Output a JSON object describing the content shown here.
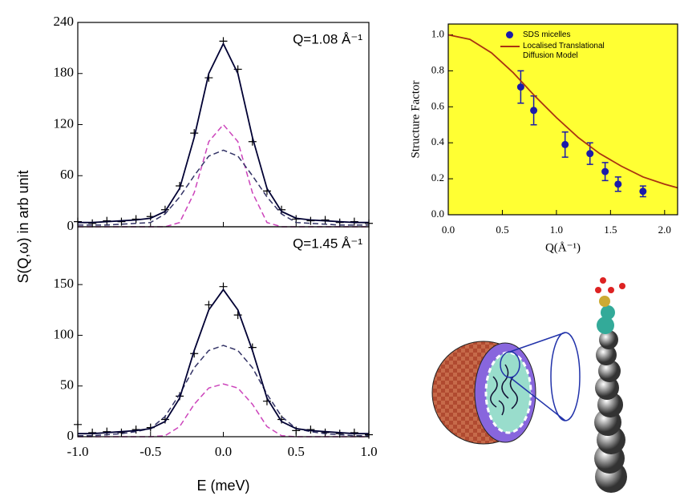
{
  "chart_data": [
    {
      "type": "line",
      "ylabel": "S(Q,ω) in arb unit",
      "annotation": "Q=1.08 Å⁻¹",
      "xlim": [
        -1.0,
        1.0
      ],
      "xticks": [
        -1,
        -0.5,
        0,
        0.5,
        1
      ],
      "ylim": [
        0,
        240
      ],
      "yticks": [
        0,
        60,
        120,
        180,
        240
      ],
      "x": [
        -1.0,
        -0.9,
        -0.8,
        -0.7,
        -0.6,
        -0.5,
        -0.4,
        -0.3,
        -0.2,
        -0.1,
        0.0,
        0.1,
        0.2,
        0.3,
        0.4,
        0.5,
        0.6,
        0.7,
        0.8,
        0.9,
        1.0
      ],
      "series": [
        {
          "type": "scatter",
          "color": "#000000",
          "values": [
            6,
            4,
            7,
            6,
            9,
            12,
            20,
            48,
            110,
            175,
            218,
            185,
            100,
            42,
            20,
            9,
            7,
            8,
            5,
            6,
            4
          ]
        },
        {
          "type": "line",
          "color": "#cc44bb",
          "dashed": true,
          "values": [
            0,
            0,
            0,
            0,
            0,
            0,
            0,
            5,
            40,
            100,
            120,
            100,
            40,
            5,
            0,
            0,
            0,
            0,
            0,
            0,
            0
          ]
        },
        {
          "type": "line",
          "color": "#333366",
          "dashed": true,
          "values": [
            2,
            2,
            2,
            3,
            4,
            5,
            15,
            35,
            60,
            83,
            90,
            83,
            60,
            35,
            15,
            5,
            4,
            3,
            2,
            2,
            2
          ]
        },
        {
          "type": "line",
          "color": "#000033",
          "dashed": false,
          "values": [
            5,
            5,
            6,
            7,
            8,
            10,
            18,
            45,
            105,
            180,
            215,
            180,
            105,
            45,
            18,
            10,
            8,
            7,
            6,
            5,
            5
          ]
        }
      ]
    },
    {
      "type": "line",
      "xlabel": "E (meV)",
      "annotation": "Q=1.45 Å⁻¹",
      "xlim": [
        -1.0,
        1.0
      ],
      "xticks": [
        {
          "value": -1.0,
          "label": "-1.0"
        },
        {
          "value": -0.5,
          "label": "-0.5"
        },
        {
          "value": 0.0,
          "label": "0.0"
        },
        {
          "value": 0.5,
          "label": "0.5"
        },
        {
          "value": 1.0,
          "label": "1.0"
        }
      ],
      "ylim": [
        0,
        207
      ],
      "yticks": [
        0,
        50,
        100,
        150
      ],
      "x": [
        -1.0,
        -0.9,
        -0.8,
        -0.7,
        -0.6,
        -0.5,
        -0.4,
        -0.3,
        -0.2,
        -0.1,
        0.0,
        0.1,
        0.2,
        0.3,
        0.4,
        0.5,
        0.6,
        0.7,
        0.8,
        0.9,
        1.0
      ],
      "series": [
        {
          "type": "scatter",
          "color": "#000000",
          "values": [
            12,
            4,
            5,
            4,
            7,
            9,
            17,
            40,
            82,
            130,
            148,
            120,
            88,
            35,
            17,
            6,
            7,
            4,
            3,
            4,
            2
          ]
        },
        {
          "type": "line",
          "color": "#cc44bb",
          "dashed": true,
          "values": [
            0,
            0,
            0,
            0,
            0,
            0,
            1,
            10,
            32,
            48,
            52,
            48,
            32,
            10,
            1,
            0,
            0,
            0,
            0,
            0,
            0
          ]
        },
        {
          "type": "line",
          "color": "#333366",
          "dashed": true,
          "values": [
            1,
            1,
            2,
            3,
            5,
            8,
            20,
            42,
            68,
            85,
            90,
            85,
            68,
            42,
            20,
            8,
            5,
            3,
            2,
            1,
            1
          ]
        },
        {
          "type": "line",
          "color": "#000033",
          "dashed": false,
          "values": [
            3,
            3,
            4,
            5,
            6,
            8,
            15,
            38,
            85,
            125,
            145,
            125,
            85,
            38,
            15,
            8,
            6,
            5,
            4,
            3,
            3
          ]
        }
      ]
    },
    {
      "type": "scatter",
      "xlabel": "Q(Å⁻¹)",
      "ylabel": "Structure Factor",
      "background": "#ffff33",
      "xlim": [
        0,
        2.12
      ],
      "xticks": [
        {
          "value": 0.0,
          "label": "0.0"
        },
        {
          "value": 0.5,
          "label": "0.5"
        },
        {
          "value": 1.0,
          "label": "1.0"
        },
        {
          "value": 1.5,
          "label": "1.5"
        },
        {
          "value": 2.0,
          "label": "2.0"
        }
      ],
      "ylim": [
        0,
        1.06
      ],
      "yticks": [
        {
          "value": 0.0,
          "label": "0.0"
        },
        {
          "value": 0.2,
          "label": "0.2"
        },
        {
          "value": 0.4,
          "label": "0.4"
        },
        {
          "value": 0.6,
          "label": "0.6"
        },
        {
          "value": 0.8,
          "label": "0.8"
        },
        {
          "value": 1.0,
          "label": "1.0"
        }
      ],
      "series": [
        {
          "type": "scatter",
          "name": "SDS micelles",
          "color": "#1a1aaa",
          "x": [
            0.67,
            0.79,
            1.08,
            1.31,
            1.45,
            1.57,
            1.8
          ],
          "values": [
            0.71,
            0.58,
            0.39,
            0.34,
            0.24,
            0.17,
            0.13
          ],
          "errors": [
            0.09,
            0.08,
            0.07,
            0.06,
            0.05,
            0.04,
            0.03
          ]
        },
        {
          "type": "line",
          "name": "Localised Translational Diffusion Model",
          "color": "#aa3311",
          "dashed": false,
          "x": [
            0,
            0.2,
            0.4,
            0.6,
            0.8,
            1.0,
            1.2,
            1.4,
            1.6,
            1.8,
            2.0,
            2.12
          ],
          "values": [
            1.0,
            0.975,
            0.9,
            0.79,
            0.66,
            0.54,
            0.43,
            0.34,
            0.27,
            0.21,
            0.17,
            0.15
          ]
        }
      ]
    }
  ]
}
